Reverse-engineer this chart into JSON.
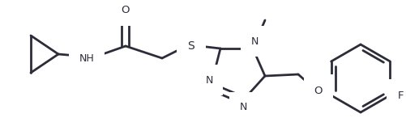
{
  "bg_color": "#ffffff",
  "line_color": "#2d2d3a",
  "line_width": 2.0,
  "figsize": [
    5.02,
    1.72
  ],
  "dpi": 100,
  "xlim": [
    0,
    502
  ],
  "ylim": [
    0,
    172
  ]
}
